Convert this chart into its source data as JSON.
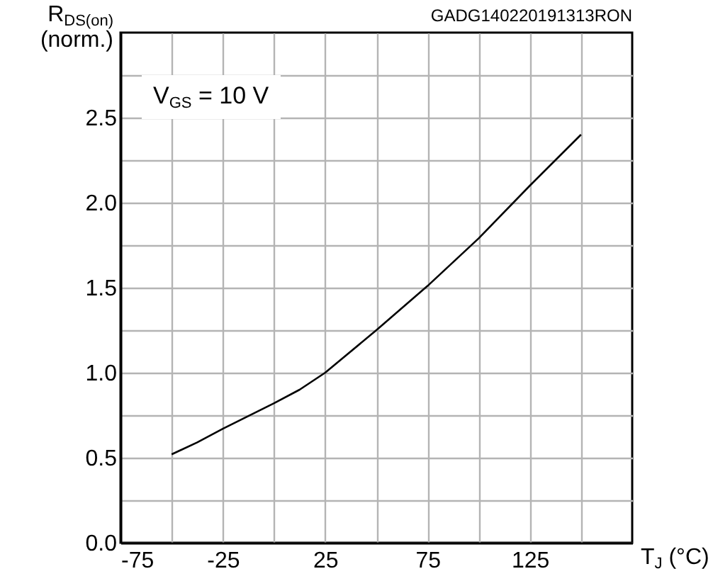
{
  "chart_data": {
    "type": "line",
    "xlabel": "T$_{J}$ (°C)",
    "ylabel": "R$_{DS(on)}$ (norm.)",
    "annotations": [
      "V$_{GS}$ = 10 V",
      "GADG140220191313RON"
    ],
    "xlim": [
      -75,
      175
    ],
    "xticks": [
      -75,
      {
        "value": -50,
        "label": null
      },
      -25,
      {
        "value": 0,
        "label": null
      },
      25,
      {
        "value": 50,
        "label": null
      },
      75,
      {
        "value": 100,
        "label": null
      },
      125,
      {
        "value": 150,
        "label": null
      }
    ],
    "ylim": [
      0,
      3.0
    ],
    "yticks": [
      {
        "value": 0,
        "label": "0.0"
      },
      {
        "value": 0.25,
        "label": null
      },
      0.5,
      {
        "value": 0.75,
        "label": null
      },
      {
        "value": 1,
        "label": "1.0"
      },
      {
        "value": 1.25,
        "label": null
      },
      1.5,
      {
        "value": 1.75,
        "label": null
      },
      {
        "value": 2,
        "label": "2.0"
      },
      {
        "value": 2.25,
        "label": null
      },
      2.5,
      {
        "value": 2.75,
        "label": null
      }
    ],
    "grid": true,
    "marker": "none",
    "line_style": "solid",
    "legend": false,
    "series": [
      {
        "color": "#000000",
        "x": [
          -50,
          -37.5,
          -25,
          0,
          12.5,
          25,
          50,
          75,
          100,
          125,
          150
        ],
        "values": [
          0.52,
          0.59,
          0.67,
          0.82,
          0.9,
          1.0,
          1.25,
          1.51,
          1.79,
          2.1,
          2.4
        ]
      }
    ]
  }
}
